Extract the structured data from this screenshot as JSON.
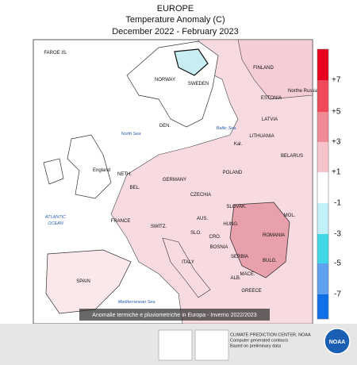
{
  "header": {
    "region": "EUROPE",
    "title": "Temperature Anomaly (C)",
    "period": "December 2022 - February 2023"
  },
  "map": {
    "labels": [
      "FAROE IS.",
      "NORWAY",
      "SWEDEN",
      "FINLAND",
      "ESTONIA",
      "LATVIA",
      "LITHUANIA",
      "BELARUS",
      "Kal.",
      "DEN.",
      "North Sea",
      "Baltic Sea",
      "England",
      "NETH.",
      "BEL.",
      "GERMANY",
      "POLAND",
      "CZECHIA",
      "SLOVAK.",
      "ATLANTIC",
      "OCEAN",
      "FRANCE",
      "SWITZ.",
      "AUS.",
      "HUNG.",
      "MOL.",
      "ROMANIA",
      "SLO.",
      "CRO.",
      "BOSNIA",
      "SERBIA",
      "BULG.",
      "ITALY",
      "ALB.",
      "MACE.",
      "GREECE",
      "SPAIN",
      "Mediterranean Sea",
      "Northe Russia"
    ]
  },
  "legend": {
    "labels": [
      "+7",
      "+5",
      "+3",
      "+1",
      "-1",
      "-3",
      "-5",
      "-7"
    ]
  },
  "caption": "Anomalie termiche e pluviometriche in Europa - Inverno 2022/2023",
  "footer": {
    "source": "CLIMATE PREDICTION CENTER, NOAA",
    "note1": "Computer generated contours",
    "note2": "Based on preliminary data",
    "logo": "NOAA"
  }
}
